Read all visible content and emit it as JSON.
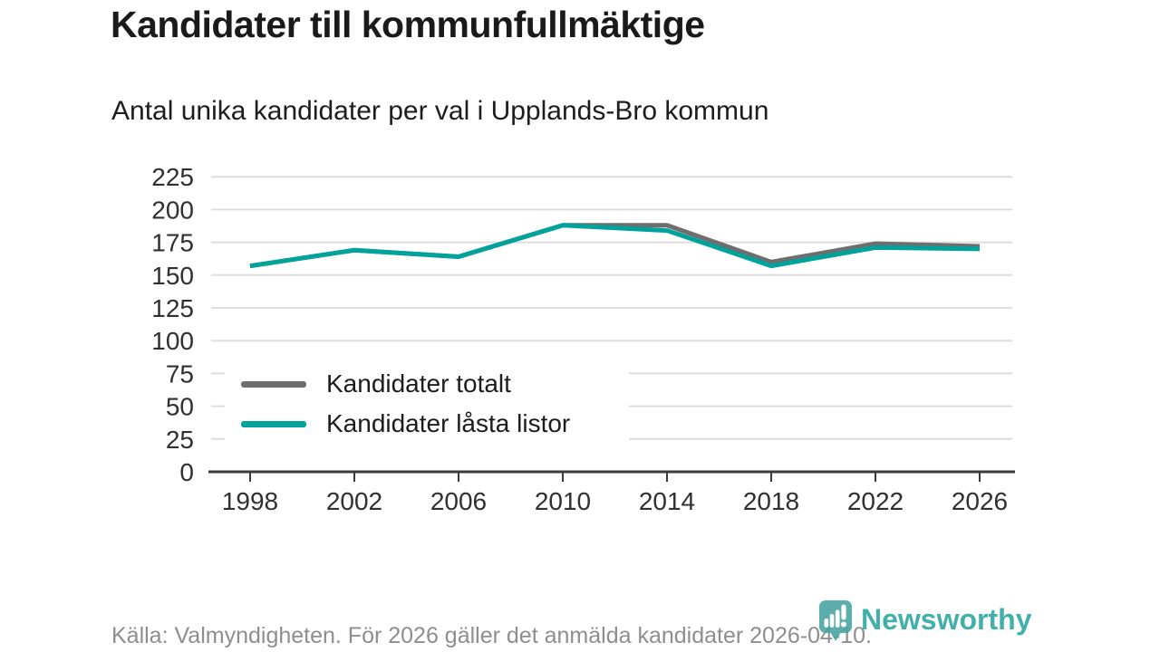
{
  "header": {
    "title": "Kandidater till kommunfullmäktige",
    "subtitle": "Antal unika kandidater per val i Upplands-Bro kommun"
  },
  "chart_data": {
    "type": "line",
    "title": "Kandidater till kommunfullmäktige",
    "subtitle": "Antal unika kandidater per val i Upplands-Bro kommun",
    "categories": [
      "1998",
      "2002",
      "2006",
      "2010",
      "2014",
      "2018",
      "2022",
      "2026"
    ],
    "series": [
      {
        "name": "Kandidater totalt",
        "color": "#6e6e6e",
        "values": [
          157,
          169,
          164,
          188,
          188,
          160,
          174,
          172
        ]
      },
      {
        "name": "Kandidater låsta listor",
        "color": "#00a39b",
        "values": [
          157,
          169,
          164,
          188,
          184,
          157,
          171,
          170
        ]
      }
    ],
    "xlabel": "",
    "ylabel": "",
    "ylim": [
      0,
      225
    ],
    "yticks": [
      0,
      25,
      50,
      75,
      100,
      125,
      150,
      175,
      200,
      225
    ],
    "grid": "horizontal",
    "grid_color": "#dedede",
    "axis_color": "#3a3a3a",
    "tick_label_color": "#303030",
    "legend_position": "inside-bottom-left"
  },
  "footer": {
    "source": "Källa: Valmyndigheten. För 2026 gäller det anmälda kandidater 2026-04-10."
  },
  "logo": {
    "text": "Newsworthy",
    "icon": "newsworthy-pin-icon",
    "pin_color": "#44a3a0",
    "text_color": "#27a49e"
  }
}
